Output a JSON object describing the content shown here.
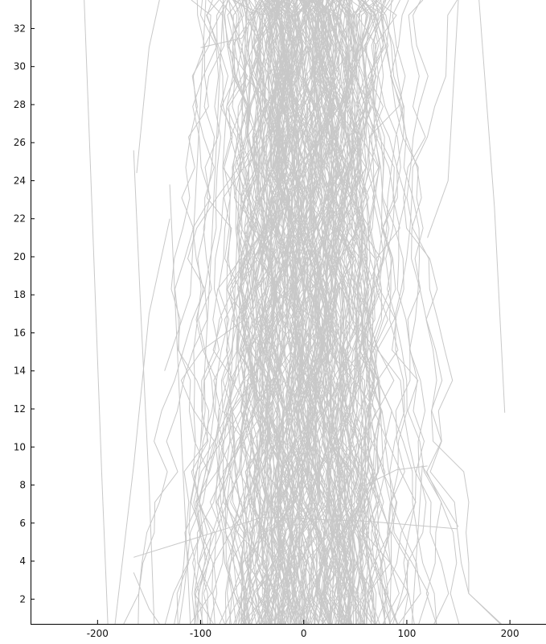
{
  "chart_data": {
    "type": "line",
    "title": "",
    "xlabel": "",
    "ylabel": "",
    "xlim": [
      -265,
      235
    ],
    "ylim": [
      0.7,
      33.5
    ],
    "x_ticks": [
      -200,
      -100,
      0,
      100,
      200
    ],
    "y_ticks": [
      2,
      4,
      6,
      8,
      10,
      12,
      14,
      16,
      18,
      20,
      22,
      24,
      26,
      28,
      30,
      32
    ],
    "x_tick_labels": [
      "-200",
      "-100",
      "0",
      "100",
      "200"
    ],
    "y_tick_labels": [
      "2",
      "4",
      "6",
      "8",
      "10",
      "12",
      "14",
      "16",
      "18",
      "20",
      "22",
      "24",
      "26",
      "28",
      "30",
      "32"
    ],
    "grid": false,
    "legend": "none",
    "line_color": "#c8c8c8",
    "series": [
      {
        "points": [
          [
            -213,
            33.5
          ],
          [
            -205,
            22
          ],
          [
            -196,
            8.6
          ],
          [
            -190,
            0.7
          ]
        ]
      },
      {
        "points": [
          [
            -165,
            25.6
          ],
          [
            -158,
            17
          ],
          [
            -150,
            8
          ],
          [
            -145,
            0.7
          ]
        ]
      },
      {
        "points": [
          [
            -162,
            24.4
          ],
          [
            -150,
            31
          ],
          [
            -140,
            33.5
          ]
        ]
      },
      {
        "points": [
          [
            -165,
            4.2
          ],
          [
            -40,
            6.3
          ],
          [
            60,
            6.1
          ],
          [
            149,
            5.7
          ]
        ]
      },
      {
        "points": [
          [
            195,
            11.8
          ],
          [
            185,
            22.6
          ],
          [
            170,
            33.5
          ]
        ]
      },
      {
        "points": [
          [
            150,
            5.8
          ],
          [
            115,
            9
          ],
          [
            105,
            0.7
          ]
        ]
      },
      {
        "points": [
          [
            -165,
            3.4
          ],
          [
            -150,
            1.5
          ],
          [
            -140,
            0.7
          ]
        ]
      },
      {
        "points": [
          [
            -183,
            0.7
          ],
          [
            -165,
            9
          ],
          [
            -150,
            17
          ],
          [
            -130,
            22
          ]
        ]
      },
      {
        "points": [
          [
            -135,
            14
          ],
          [
            -110,
            18
          ],
          [
            -95,
            33.5
          ]
        ]
      },
      {
        "points": [
          [
            -100,
            10.2
          ],
          [
            -90,
            20
          ],
          [
            -78,
            33.5
          ]
        ]
      },
      {
        "points": [
          [
            -95,
            8
          ],
          [
            -70,
            14
          ],
          [
            -55,
            33.5
          ]
        ]
      },
      {
        "points": [
          [
            -100,
            31
          ],
          [
            -60,
            31.5
          ],
          [
            -40,
            33.5
          ]
        ]
      },
      {
        "points": [
          [
            60,
            8
          ],
          [
            90,
            8.8
          ],
          [
            120,
            9
          ]
        ]
      },
      {
        "points": [
          [
            120,
            21
          ],
          [
            140,
            24
          ],
          [
            150,
            33.5
          ]
        ]
      },
      {
        "points": [
          [
            -130,
            23.8
          ],
          [
            -120,
            12
          ],
          [
            -110,
            0.7
          ]
        ]
      }
    ],
    "random_bundle": {
      "seed": 7,
      "count": 260,
      "x_mean": 0,
      "x_sd": 58,
      "step_sd": 26
    }
  }
}
